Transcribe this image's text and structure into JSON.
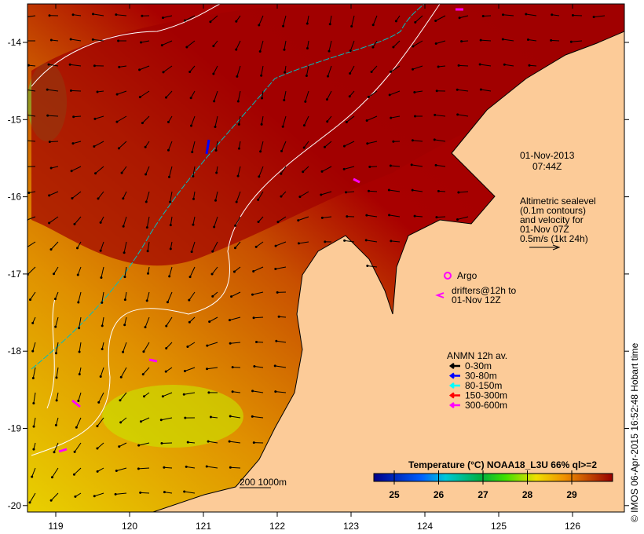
{
  "map": {
    "lon_ticks": [
      "119",
      "120",
      "121",
      "122",
      "123",
      "124",
      "125",
      "126"
    ],
    "lat_ticks": [
      "-14",
      "-15",
      "-16",
      "-17",
      "-18",
      "-19",
      "-20"
    ],
    "date": "01-Nov-2013",
    "time": "07:44Z",
    "altimetry_note": [
      "Altimetric sealevel",
      "(0.1m contours)",
      "and velocity for",
      "01-Nov 07Z",
      "0.5m/s (1kt 24h)"
    ],
    "argo_label": "Argo",
    "drifters_label": [
      "drifters@12h to",
      "01-Nov 12Z"
    ],
    "anmn_title": "ANMN 12h av.",
    "anmn_legend": [
      {
        "label": "0-30m",
        "color": "#000000"
      },
      {
        "label": "30-80m",
        "color": "#0000ff"
      },
      {
        "label": "80-150m",
        "color": "#00ffff"
      },
      {
        "label": "150-300m",
        "color": "#ff0000"
      },
      {
        "label": "300-600m",
        "color": "#ff00ff"
      }
    ],
    "colorbar_title": "Temperature (°C) NOAA18_L3U 66% ql>=2",
    "colorbar_ticks": [
      "25",
      "26",
      "27",
      "28",
      "29"
    ],
    "scale_label": "200  1000m",
    "credit": "© IMOS 06-Apr-2015 16:52:48 Hobart time",
    "colors": {
      "land": "#fccb98",
      "warm": "#a80000",
      "mid": "#d06010",
      "cool": "#e8b000",
      "contour": "#ffffff",
      "isobath": "#00c0c0"
    }
  }
}
